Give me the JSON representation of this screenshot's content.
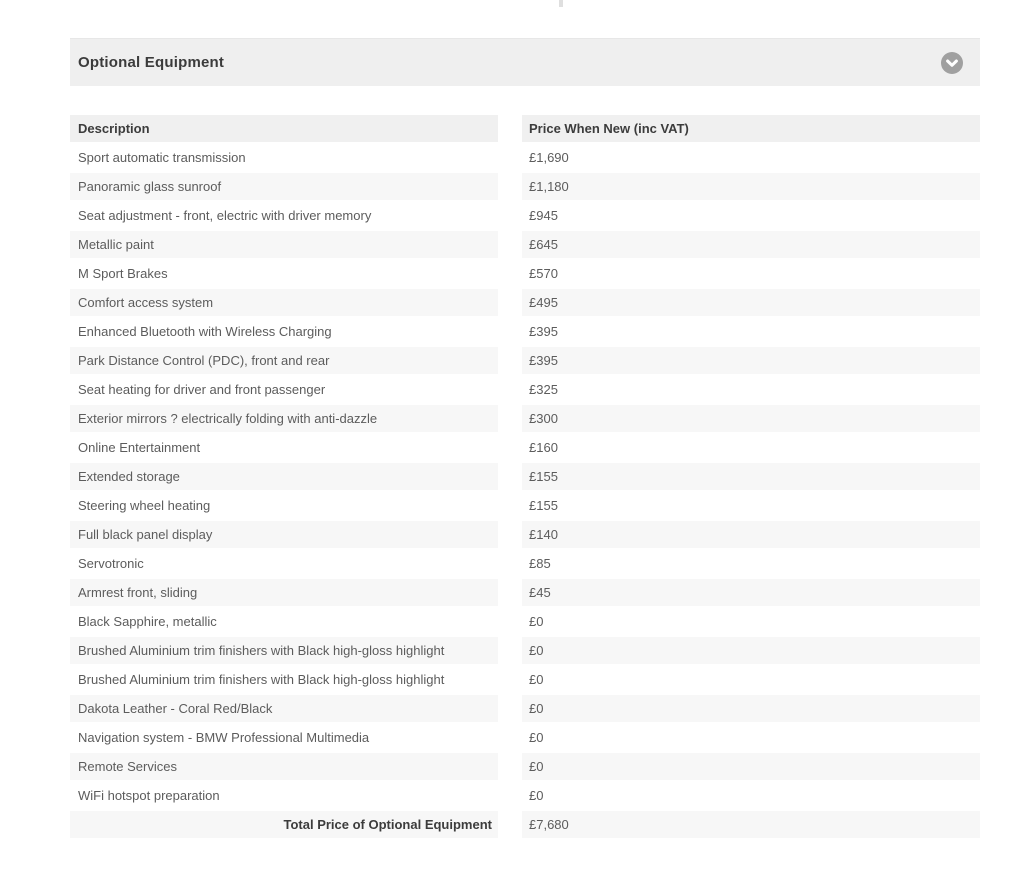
{
  "section": {
    "title": "Optional Equipment",
    "collapse_icon": "chevron-down-circle",
    "colors": {
      "header_bar_bg": "#efefef",
      "table_header_bg": "#f0f0f0",
      "row_stripe_bg": "#f7f7f7",
      "text": "#5c5c5c",
      "bold_text": "#3c3c3c",
      "icon_circle": "#a0a0a0"
    }
  },
  "table": {
    "columns": [
      "Description",
      "Price When New (inc VAT)"
    ],
    "rows": [
      {
        "description": "Sport automatic transmission",
        "price": "£1,690"
      },
      {
        "description": "Panoramic glass sunroof",
        "price": "£1,180"
      },
      {
        "description": "Seat adjustment - front, electric with driver memory",
        "price": "£945"
      },
      {
        "description": "Metallic paint",
        "price": "£645"
      },
      {
        "description": "M Sport Brakes",
        "price": "£570"
      },
      {
        "description": "Comfort access system",
        "price": "£495"
      },
      {
        "description": "Enhanced Bluetooth with Wireless Charging",
        "price": "£395"
      },
      {
        "description": "Park Distance Control (PDC), front and rear",
        "price": "£395"
      },
      {
        "description": "Seat heating for driver and front passenger",
        "price": "£325"
      },
      {
        "description": "Exterior mirrors ? electrically folding with anti-dazzle",
        "price": "£300"
      },
      {
        "description": "Online Entertainment",
        "price": "£160"
      },
      {
        "description": "Extended storage",
        "price": "£155"
      },
      {
        "description": "Steering wheel heating",
        "price": "£155"
      },
      {
        "description": "Full black panel display",
        "price": "£140"
      },
      {
        "description": "Servotronic",
        "price": "£85"
      },
      {
        "description": "Armrest front, sliding",
        "price": "£45"
      },
      {
        "description": "Black Sapphire, metallic",
        "price": "£0"
      },
      {
        "description": "Brushed Aluminium trim finishers with Black high-gloss highlight",
        "price": "£0"
      },
      {
        "description": "Brushed Aluminium trim finishers with Black high-gloss highlight",
        "price": "£0"
      },
      {
        "description": "Dakota Leather - Coral Red/Black",
        "price": "£0"
      },
      {
        "description": "Navigation system - BMW Professional Multimedia",
        "price": "£0"
      },
      {
        "description": "Remote Services",
        "price": "£0"
      },
      {
        "description": "WiFi hotspot preparation",
        "price": "£0"
      }
    ],
    "total": {
      "label": "Total Price of Optional Equipment",
      "value": "£7,680"
    }
  }
}
